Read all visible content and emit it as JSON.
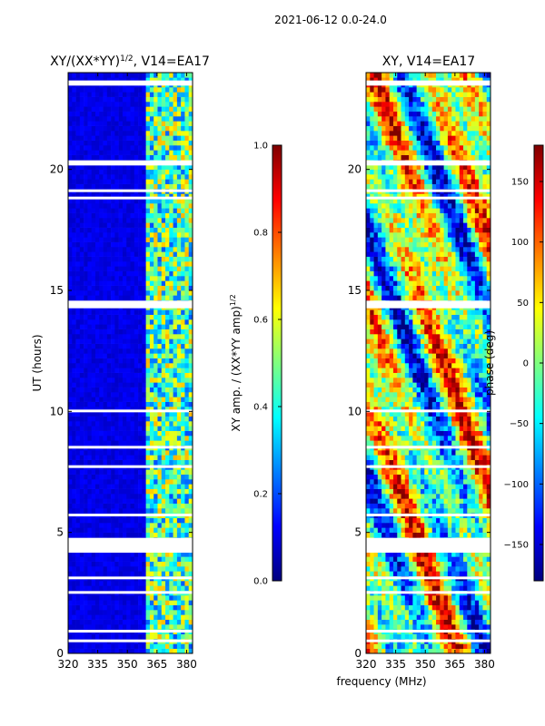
{
  "figure": {
    "suptitle": "2021-06-12 0.0-24.0",
    "xlabel": "frequency (MHz)",
    "ylabel": "UT (hours)"
  },
  "chart_data": [
    {
      "type": "heatmap",
      "title_main": "XY/(XX*YY)",
      "title_sup": "1/2",
      "title_tail": ", V14=EA17",
      "xlabel": "frequency (MHz)",
      "ylabel": "UT (hours)",
      "xlim": [
        320,
        383
      ],
      "ylim": [
        0,
        24
      ],
      "xticks": [
        320,
        335,
        350,
        365,
        380
      ],
      "yticks": [
        0,
        5,
        10,
        15,
        20
      ],
      "colormap": "jet",
      "colorbar": {
        "label_main": "XY amp. / (XX*YY amp)",
        "label_sup": "1/2",
        "range": [
          0.0,
          1.0
        ],
        "ticks": [
          "0.0",
          "0.2",
          "0.4",
          "0.6",
          "0.8",
          "1.0"
        ],
        "tick_values": [
          0.0,
          0.2,
          0.4,
          0.6,
          0.8,
          1.0
        ]
      },
      "value_range": [
        0.0,
        1.0
      ],
      "description_bands": [
        {
          "freq_range": [
            320,
            360
          ],
          "typical_value": 0.1
        },
        {
          "freq_range": [
            360,
            383
          ],
          "typical_value": 0.5
        }
      ],
      "gap_hours": [
        0.5,
        0.9,
        2.5,
        3.1,
        4.2,
        4.3,
        4.4,
        4.5,
        4.6,
        4.7,
        5.7,
        7.7,
        8.5,
        10.0,
        14.3,
        14.4,
        14.5,
        18.8,
        19.1,
        20.2,
        20.3,
        23.5,
        23.6
      ]
    },
    {
      "type": "heatmap",
      "title_main": "XY, V14=EA17",
      "xlabel": "frequency (MHz)",
      "ylabel": "",
      "xlim": [
        320,
        383
      ],
      "ylim": [
        0,
        24
      ],
      "xticks": [
        320,
        335,
        350,
        365,
        380
      ],
      "yticks": [
        0,
        5,
        10,
        15,
        20
      ],
      "colormap": "jet",
      "colorbar": {
        "label_main": "phase (deg)",
        "range": [
          -180,
          180
        ],
        "ticks": [
          "−150",
          "−100",
          "−50",
          "0",
          "50",
          "100",
          "150"
        ],
        "tick_values": [
          -150,
          -100,
          -50,
          0,
          50,
          100,
          150
        ]
      },
      "value_range": [
        -180,
        180
      ],
      "gap_hours": [
        0.5,
        0.9,
        2.5,
        3.1,
        4.2,
        4.3,
        4.4,
        4.5,
        4.6,
        4.7,
        5.7,
        7.7,
        8.5,
        10.0,
        14.3,
        14.4,
        14.5,
        18.8,
        19.1,
        20.2,
        20.3,
        23.5,
        23.6
      ]
    }
  ]
}
